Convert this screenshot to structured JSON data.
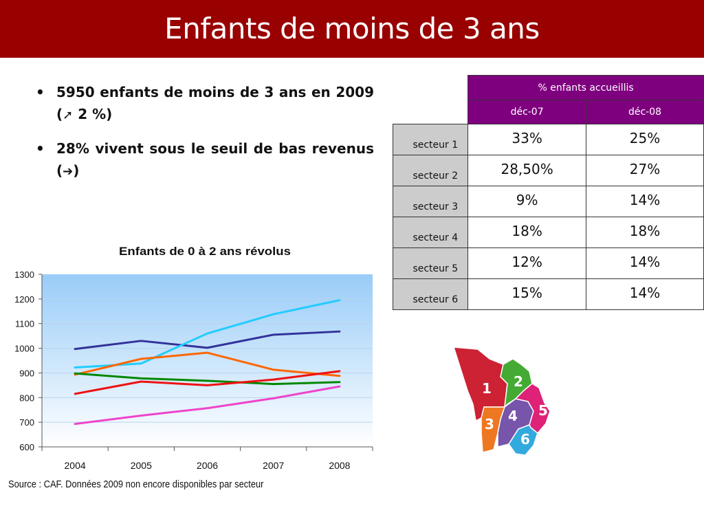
{
  "slide": {
    "title": "Enfants de moins de 3 ans",
    "bullets": [
      {
        "pre": "5950 enfants de moins de 3 ans en 2009 (",
        "symbol": "➚",
        "post": " 2 %)"
      },
      {
        "pre": "28% vivent sous le seuil de bas revenus (",
        "symbol": "➔",
        "post": ")"
      }
    ],
    "source": "Source : CAF. Données 2009 non encore disponibles par secteur"
  },
  "table": {
    "group_header": "% enfants accueillis",
    "columns": [
      "déc-07",
      "déc-08"
    ],
    "rows": [
      {
        "label": "secteur 1",
        "values": [
          "33%",
          "25%"
        ]
      },
      {
        "label": "secteur 2",
        "values": [
          "28,50%",
          "27%"
        ]
      },
      {
        "label": "secteur 3",
        "values": [
          "9%",
          "14%"
        ]
      },
      {
        "label": "secteur 4",
        "values": [
          "18%",
          "18%"
        ]
      },
      {
        "label": "secteur 5",
        "values": [
          "12%",
          "14%"
        ]
      },
      {
        "label": "secteur 6",
        "values": [
          "15%",
          "14%"
        ]
      }
    ]
  },
  "map": {
    "sectors": [
      {
        "num": "1",
        "color": "#cc2233"
      },
      {
        "num": "2",
        "color": "#44aa33"
      },
      {
        "num": "3",
        "color": "#ee7722"
      },
      {
        "num": "4",
        "color": "#7755aa"
      },
      {
        "num": "5",
        "color": "#dd2277"
      },
      {
        "num": "6",
        "color": "#33aadd"
      }
    ]
  },
  "chart_data": {
    "type": "line",
    "title": "Enfants de 0 à 2 ans révolus",
    "categories": [
      "2004",
      "2005",
      "2006",
      "2007",
      "2008"
    ],
    "ylim": [
      600,
      1300
    ],
    "yticks": [
      600,
      700,
      800,
      900,
      1000,
      1100,
      1200,
      1300
    ],
    "grid": true,
    "legend": "none",
    "series": [
      {
        "color": "#333399",
        "values": [
          997,
          1030,
          1002,
          1055,
          1068
        ]
      },
      {
        "color": "#22ccff",
        "values": [
          922,
          938,
          1060,
          1138,
          1195
        ]
      },
      {
        "color": "#ff6600",
        "values": [
          893,
          957,
          982,
          913,
          888
        ]
      },
      {
        "color": "#008800",
        "values": [
          898,
          878,
          868,
          855,
          863
        ]
      },
      {
        "color": "#ee1111",
        "values": [
          815,
          865,
          850,
          873,
          907
        ]
      },
      {
        "color": "#ee44cc",
        "values": [
          693,
          727,
          757,
          797,
          845
        ]
      }
    ]
  }
}
